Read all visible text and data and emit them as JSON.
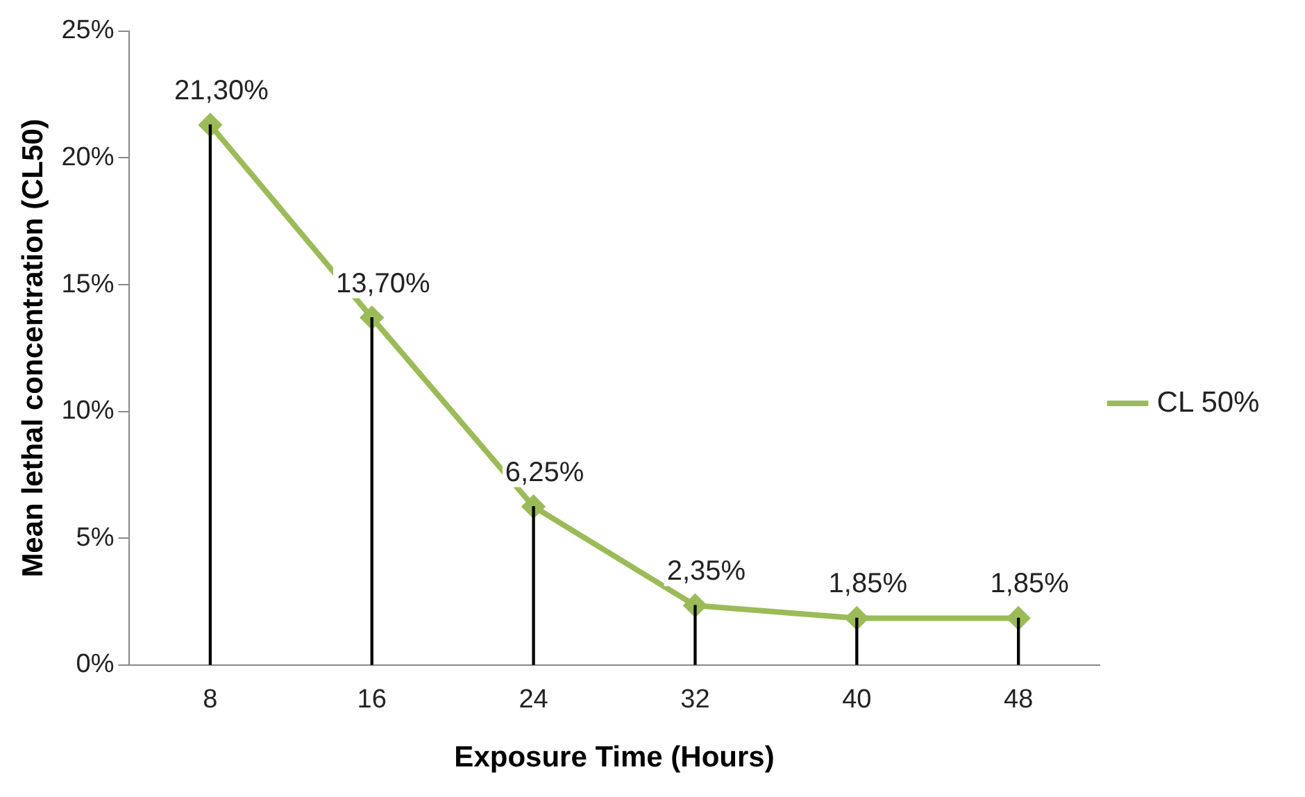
{
  "chart_data": {
    "type": "line",
    "xlabel": "Exposure Time (Hours)",
    "ylabel": "Mean lethal concentration (CL50)",
    "categories": [
      "8",
      "16",
      "24",
      "32",
      "40",
      "48"
    ],
    "series": [
      {
        "type": "bar",
        "color": "#000000",
        "values": [
          21.3,
          13.7,
          6.25,
          2.35,
          1.85,
          1.85
        ]
      },
      {
        "name": "CL 50%",
        "color": "#9bbb59",
        "values": [
          21.3,
          13.7,
          6.25,
          2.35,
          1.85,
          1.85
        ],
        "value_labels": [
          "21,30%",
          "13,70%",
          "6,25%",
          "2,35%",
          "1,85%",
          "1,85%"
        ]
      }
    ],
    "ylim": [
      0,
      25
    ],
    "yticks": [
      {
        "value": 0,
        "label": "0%"
      },
      {
        "value": 5,
        "label": "5%"
      },
      {
        "value": 10,
        "label": "10%"
      },
      {
        "value": 15,
        "label": "15%"
      },
      {
        "value": 20,
        "label": "20%"
      },
      {
        "value": 25,
        "label": "25%"
      }
    ],
    "grid": false,
    "legend": "right",
    "marker": "diamond",
    "line_style": "solid"
  }
}
